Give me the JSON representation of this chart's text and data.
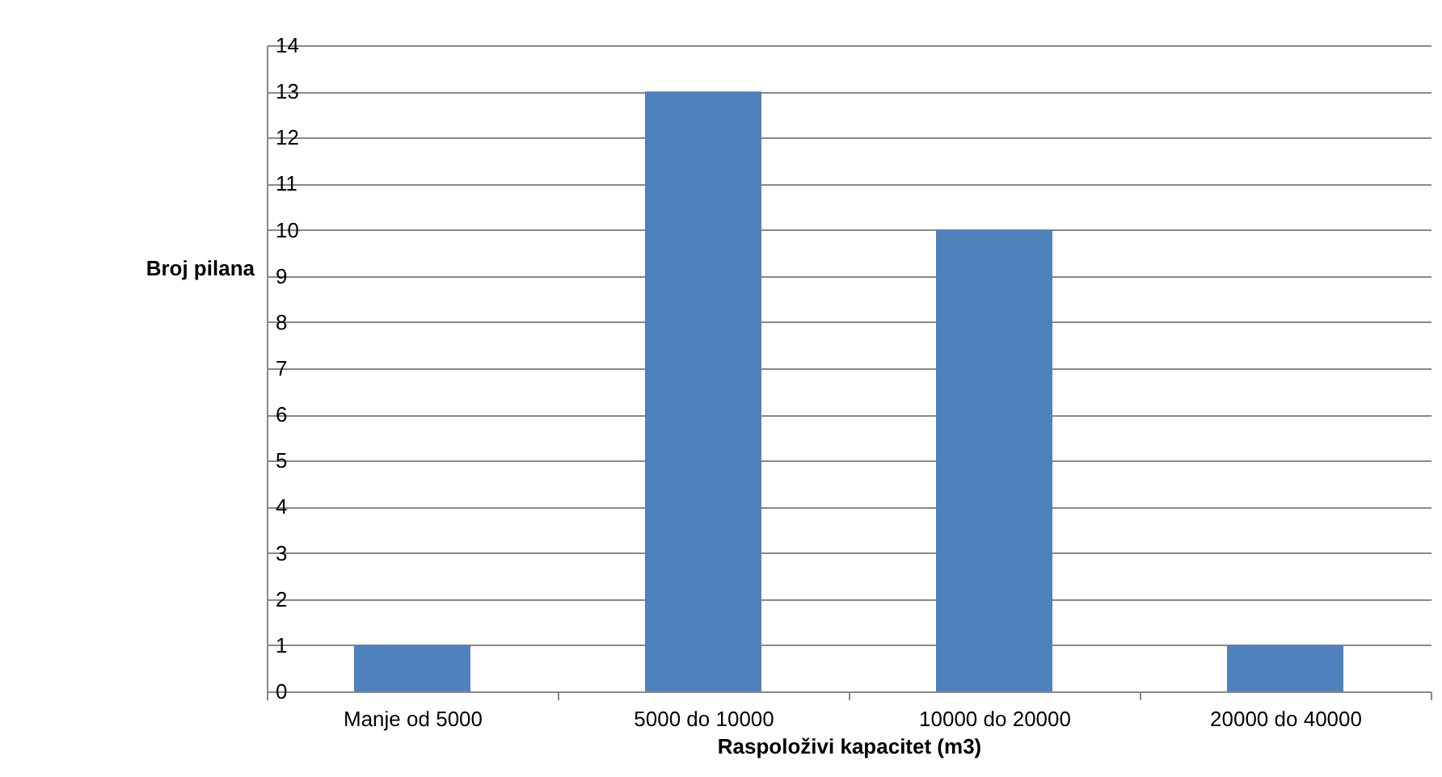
{
  "chart_data": {
    "type": "bar",
    "xlabel": "Raspoloživi kapacitet (m3)",
    "ylabel": "Broj pilana",
    "categories": [
      "Manje od 5000",
      "5000 do 10000",
      "10000 do 20000",
      "20000 do 40000"
    ],
    "values": [
      1,
      13,
      10,
      1
    ],
    "color": "#4f81bd",
    "ylim": [
      0,
      14
    ],
    "yticks": [
      0,
      1,
      2,
      3,
      4,
      5,
      6,
      7,
      8,
      9,
      10,
      11,
      12,
      13,
      14
    ],
    "grid": "y"
  }
}
